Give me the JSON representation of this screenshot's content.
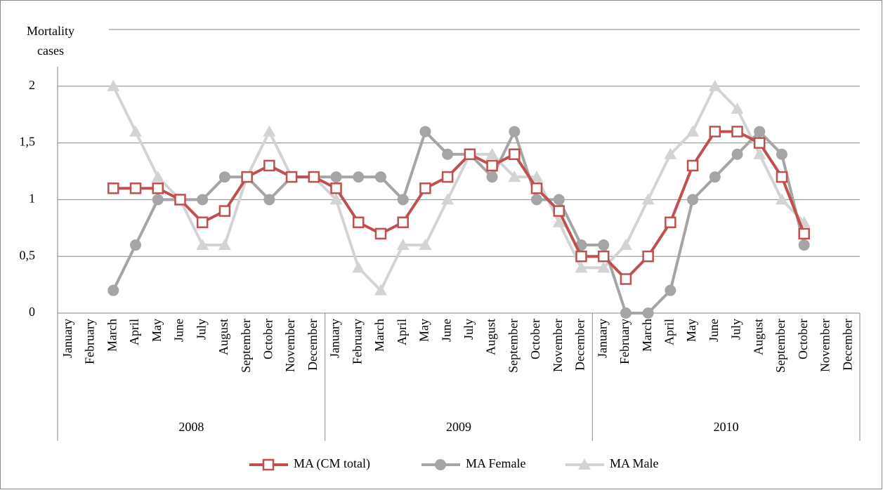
{
  "chart_data": {
    "type": "line",
    "y_label": "Mortality cases",
    "categories": [
      "January",
      "February",
      "March",
      "April",
      "May",
      "June",
      "July",
      "August",
      "September",
      "October",
      "November",
      "December",
      "January",
      "February",
      "March",
      "April",
      "May",
      "June",
      "July",
      "August",
      "September",
      "October",
      "November",
      "December",
      "January",
      "February",
      "March",
      "April",
      "May",
      "June",
      "July",
      "August",
      "September",
      "October",
      "November",
      "December"
    ],
    "groups": [
      "2008",
      "2009",
      "2010"
    ],
    "series": [
      {
        "name": "MA (CM total)",
        "color": "#c0504d",
        "marker": "square",
        "values": [
          null,
          null,
          1.1,
          1.1,
          1.1,
          1.0,
          0.8,
          0.9,
          1.2,
          1.3,
          1.2,
          1.2,
          1.1,
          0.8,
          0.7,
          0.8,
          1.1,
          1.2,
          1.4,
          1.3,
          1.4,
          1.1,
          0.9,
          0.5,
          0.5,
          0.3,
          0.5,
          0.8,
          1.3,
          1.6,
          1.6,
          1.5,
          1.2,
          0.7,
          null,
          null
        ]
      },
      {
        "name": "MA Female",
        "color": "#a5a5a5",
        "marker": "circle",
        "values": [
          null,
          null,
          0.2,
          0.6,
          1.0,
          1.0,
          1.0,
          1.2,
          1.2,
          1.0,
          1.2,
          1.2,
          1.2,
          1.2,
          1.2,
          1.0,
          1.6,
          1.4,
          1.4,
          1.2,
          1.6,
          1.0,
          1.0,
          0.6,
          0.6,
          0,
          0,
          0.2,
          1.0,
          1.2,
          1.4,
          1.6,
          1.4,
          0.6,
          null,
          null
        ]
      },
      {
        "name": "MA Male",
        "color": "#d3d3d3",
        "marker": "triangle",
        "values": [
          null,
          null,
          2.0,
          1.6,
          1.2,
          1.0,
          0.6,
          0.6,
          1.2,
          1.6,
          1.2,
          1.2,
          1.0,
          0.4,
          0.2,
          0.6,
          0.6,
          1.0,
          1.4,
          1.4,
          1.2,
          1.2,
          0.8,
          0.4,
          0.4,
          0.6,
          1.0,
          1.4,
          1.6,
          2.0,
          1.8,
          1.4,
          1.0,
          0.8,
          null,
          null
        ]
      }
    ],
    "ylim": [
      0,
      2.5
    ],
    "yticks": [
      0,
      {
        "value": 0.5,
        "label": "0,5"
      },
      1,
      {
        "value": 1.5,
        "label": "1,5"
      },
      2
    ],
    "grid": true,
    "legend": "bottom"
  }
}
